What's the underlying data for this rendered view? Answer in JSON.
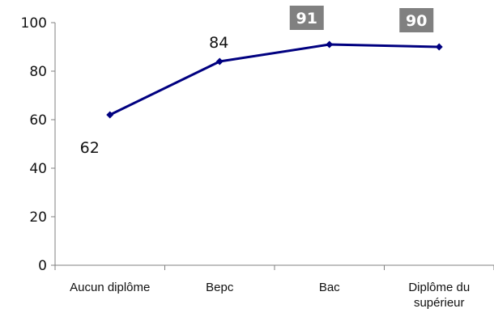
{
  "chart_data": {
    "type": "line",
    "categories": [
      "Aucun diplôme",
      "Bepc",
      "Bac",
      "Diplôme du supérieur"
    ],
    "category_lines": [
      [
        "Aucun diplôme"
      ],
      [
        "Bepc"
      ],
      [
        "Bac"
      ],
      [
        "Diplôme du",
        "supérieur"
      ]
    ],
    "values": [
      62,
      84,
      91,
      90
    ],
    "value_labels": [
      "62",
      "84",
      "91",
      "90"
    ],
    "label_style": [
      "plain-below",
      "plain-above",
      "boxed",
      "boxed"
    ],
    "ylim": [
      0,
      100
    ],
    "yticks": [
      0,
      20,
      40,
      60,
      80,
      100
    ],
    "ytick_labels": [
      "0",
      "20",
      "40",
      "60",
      "80",
      "100"
    ],
    "grid": false,
    "legend": "none",
    "colors": {
      "line": "#000080",
      "axis": "#808080",
      "label_box": "#808080"
    }
  }
}
